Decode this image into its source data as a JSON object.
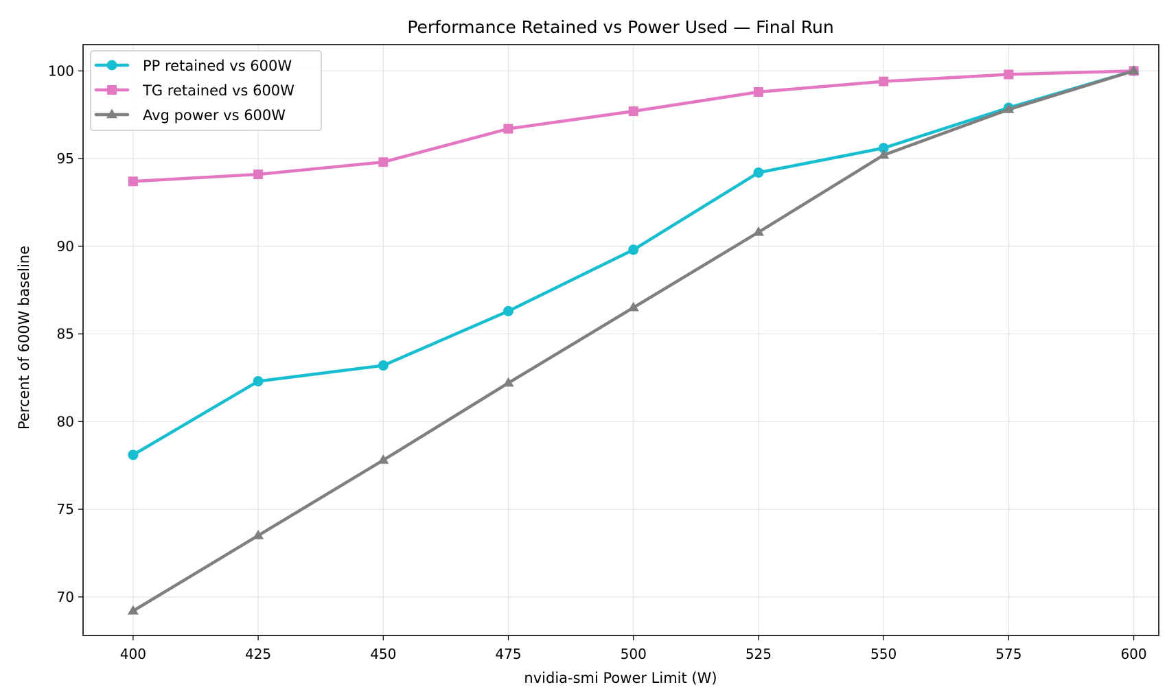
{
  "chart_data": {
    "type": "line",
    "title": "Performance Retained vs Power Used — Final Run",
    "xlabel": "nvidia-smi Power Limit (W)",
    "ylabel": "Percent of 600W baseline",
    "x": [
      400,
      425,
      450,
      475,
      500,
      525,
      550,
      575,
      600
    ],
    "x_ticks": [
      "400",
      "425",
      "450",
      "475",
      "500",
      "525",
      "550",
      "575",
      "600"
    ],
    "y_ticks": [
      "70",
      "75",
      "80",
      "85",
      "90",
      "95",
      "100"
    ],
    "xlim": [
      390,
      605
    ],
    "ylim": [
      67.8,
      101.5
    ],
    "grid": true,
    "legend_position": "upper-left",
    "series": [
      {
        "name": "PP retained vs 600W",
        "color": "#17becf",
        "marker": "circle",
        "values": [
          78.1,
          82.3,
          83.2,
          86.3,
          89.8,
          94.2,
          95.6,
          97.9,
          100.0
        ]
      },
      {
        "name": "TG retained vs 600W",
        "color": "#e377c2",
        "marker": "square",
        "values": [
          93.7,
          94.1,
          94.8,
          96.7,
          97.7,
          98.8,
          99.4,
          99.8,
          100.0
        ]
      },
      {
        "name": "Avg power vs 600W",
        "color": "#7f7f7f",
        "marker": "triangle",
        "values": [
          69.2,
          73.5,
          77.8,
          82.2,
          86.5,
          90.8,
          95.2,
          97.8,
          100.0
        ]
      }
    ]
  }
}
